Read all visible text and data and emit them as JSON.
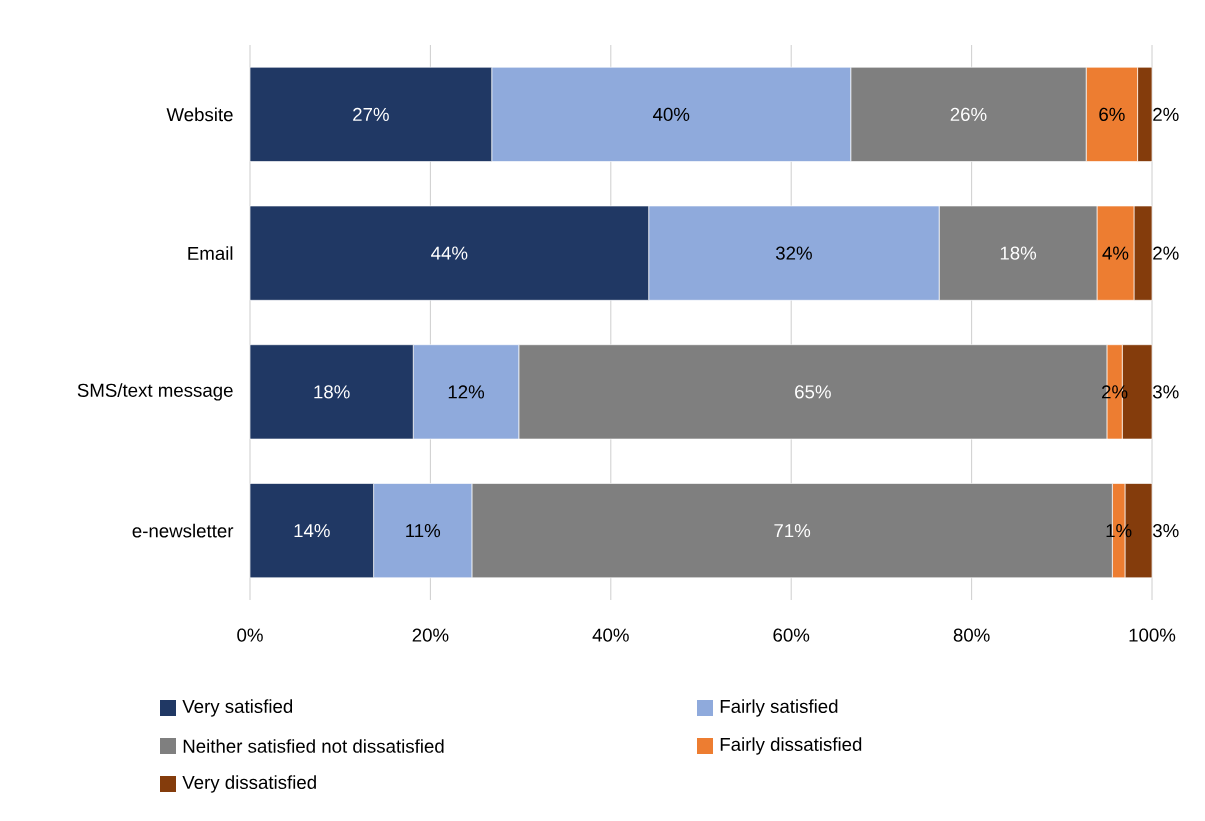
{
  "chart_data": {
    "type": "bar",
    "orientation": "horizontal",
    "stacked": true,
    "categories": [
      "Website",
      "Email",
      "SMS/text message",
      "e-newsletter"
    ],
    "series": [
      {
        "name": "Very satisfied",
        "color": "#203864",
        "values": [
          26.8,
          44.2,
          18.1,
          13.7
        ],
        "value_labels": [
          "27%",
          "44%",
          "18%",
          "14%"
        ]
      },
      {
        "name": "Fairly satisfied",
        "color": "#8faadc",
        "values": [
          39.8,
          32.2,
          11.7,
          10.9
        ],
        "value_labels": [
          "40%",
          "32%",
          "12%",
          "11%"
        ]
      },
      {
        "name": "Neither satisfied not dissatisfied",
        "color": "#7f7f7f",
        "values": [
          26.1,
          17.5,
          65.2,
          71.0
        ],
        "value_labels": [
          "26%",
          "18%",
          "65%",
          "71%"
        ]
      },
      {
        "name": "Fairly dissatisfied",
        "color": "#ed7d31",
        "values": [
          5.7,
          4.1,
          1.7,
          1.4
        ],
        "value_labels": [
          "6%",
          "4%",
          "2%",
          "1%"
        ]
      },
      {
        "name": "Very dissatisfied",
        "color": "#843c0c",
        "values": [
          1.6,
          2.0,
          3.3,
          3.0
        ],
        "value_labels": [
          "2%",
          "2%",
          "3%",
          "3%"
        ]
      }
    ],
    "xlim": [
      0,
      100
    ],
    "xticks": [
      {
        "value": 0,
        "label": "0%"
      },
      {
        "value": 20,
        "label": "20%"
      },
      {
        "value": 40,
        "label": "40%"
      },
      {
        "value": 60,
        "label": "60%"
      },
      {
        "value": 80,
        "label": "80%"
      },
      {
        "value": 100,
        "label": "100%"
      }
    ],
    "grid": "x",
    "legend": "bottom"
  }
}
